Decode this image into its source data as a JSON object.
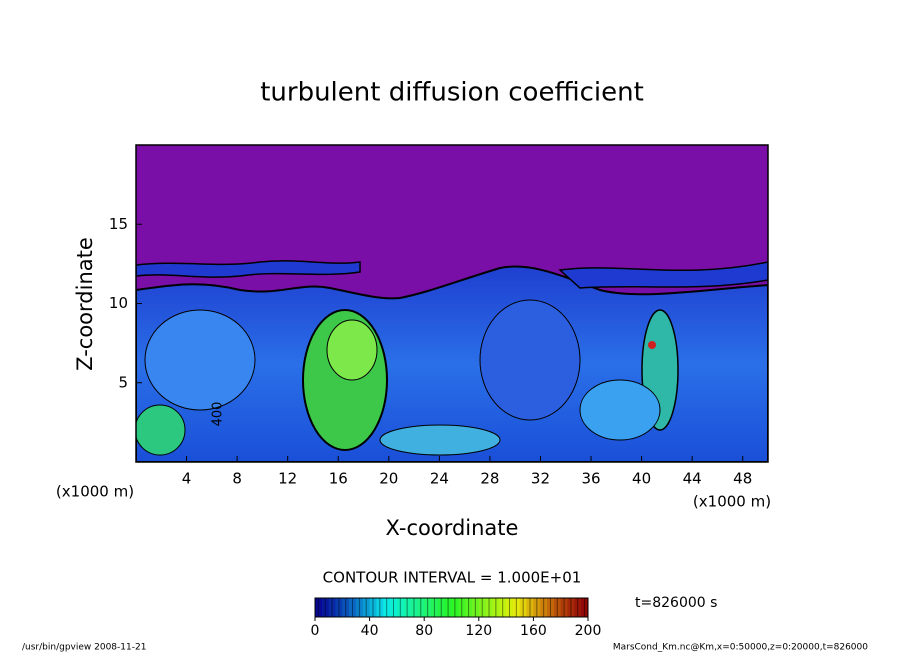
{
  "chart_data": {
    "type": "contour",
    "title": "turbulent diffusion coefficient",
    "xlabel": "X-coordinate",
    "ylabel": "Z-coordinate",
    "x_unit": "(x1000 m)",
    "y_unit": "(x1000 m)",
    "xlim": [
      0,
      50
    ],
    "xticks": [
      4,
      8,
      12,
      16,
      20,
      24,
      28,
      32,
      36,
      40,
      44,
      48
    ],
    "ylim": [
      0,
      20
    ],
    "yticks": [
      5,
      10,
      15
    ],
    "contour_label": "400",
    "contour_interval": "CONTOUR INTERVAL = 1.000E+01",
    "colorbar": {
      "lim": [
        0,
        200
      ],
      "ticks": [
        0,
        40,
        80,
        120,
        160,
        200
      ]
    },
    "time_label": "t=826000 s",
    "footer_left": "/usr/bin/gpview   2008-11-21",
    "footer_right": "MarsCond_Km.nc@Km,x=0:50000,z=0:20000,t=826000"
  }
}
